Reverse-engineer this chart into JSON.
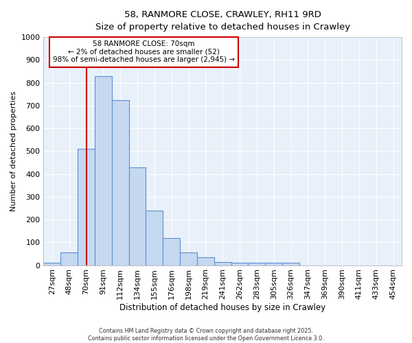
{
  "title1": "58, RANMORE CLOSE, CRAWLEY, RH11 9RD",
  "title2": "Size of property relative to detached houses in Crawley",
  "xlabel": "Distribution of detached houses by size in Crawley",
  "ylabel": "Number of detached properties",
  "bar_labels": [
    "27sqm",
    "48sqm",
    "70sqm",
    "91sqm",
    "112sqm",
    "134sqm",
    "155sqm",
    "176sqm",
    "198sqm",
    "219sqm",
    "241sqm",
    "262sqm",
    "283sqm",
    "305sqm",
    "326sqm",
    "347sqm",
    "369sqm",
    "390sqm",
    "411sqm",
    "433sqm",
    "454sqm"
  ],
  "bar_values": [
    10,
    57,
    510,
    828,
    725,
    428,
    240,
    120,
    57,
    35,
    15,
    10,
    10,
    10,
    10,
    0,
    0,
    0,
    0,
    0,
    0
  ],
  "bar_color": "#c5d8f0",
  "bar_edge_color": "#5b8fcf",
  "bg_color": "#e8f0fa",
  "grid_color": "#ffffff",
  "property_line_x": 2,
  "property_line_color": "#cc0000",
  "annotation_text": "58 RANMORE CLOSE: 70sqm\n← 2% of detached houses are smaller (52)\n98% of semi-detached houses are larger (2,945) →",
  "annotation_box_color": "#cc0000",
  "footer1": "Contains HM Land Registry data © Crown copyright and database right 2025.",
  "footer2": "Contains public sector information licensed under the Open Government Licence 3.0.",
  "ylim": [
    0,
    1000
  ],
  "yticks": [
    0,
    100,
    200,
    300,
    400,
    500,
    600,
    700,
    800,
    900,
    1000
  ]
}
